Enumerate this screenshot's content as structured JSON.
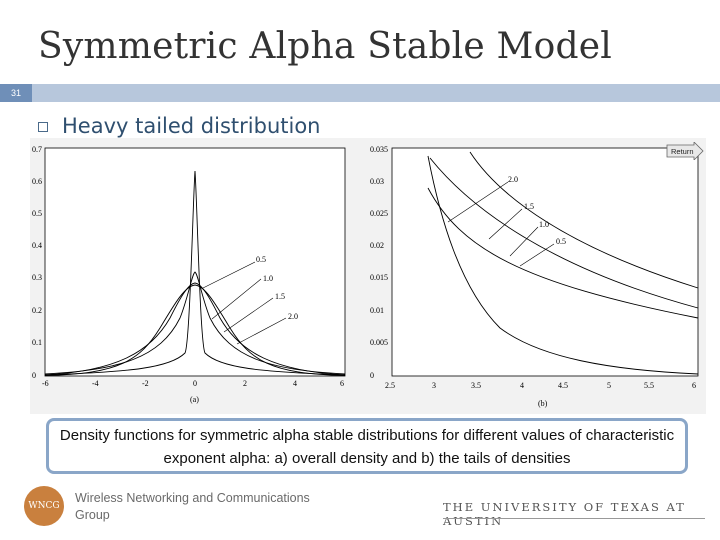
{
  "slide": {
    "title": "Symmetric Alpha Stable Model",
    "number": "31",
    "bullet": "Heavy tailed distribution",
    "return_label": "Return"
  },
  "figure_a": {
    "xticks": [
      "-6",
      "-4",
      "-2",
      "0",
      "2",
      "4",
      "6"
    ],
    "yticks": [
      "0",
      "0.1",
      "0.2",
      "0.3",
      "0.4",
      "0.5",
      "0.6",
      "0.7"
    ],
    "sublabel": "(a)",
    "curve_labels": [
      "0.5",
      "1.0",
      "1.5",
      "2.0"
    ]
  },
  "figure_b": {
    "xticks": [
      "2.5",
      "3",
      "3.5",
      "4",
      "4.5",
      "5",
      "5.5",
      "6"
    ],
    "yticks": [
      "0",
      "0.005",
      "0.01",
      "0.015",
      "0.02",
      "0.025",
      "0.03",
      "0.035"
    ],
    "sublabel": "(b)",
    "curve_labels": [
      "2.0",
      "1.5",
      "1.0",
      "0.5"
    ]
  },
  "caption": "Density functions for symmetric alpha stable distributions for different values of characteristic exponent alpha: a) overall density and b) the tails of densities",
  "footer": {
    "logo_text": "WNCG",
    "org_line1": "Wireless Networking and Communications",
    "org_line2": "Group",
    "university": "THE UNIVERSITY OF TEXAS AT AUSTIN"
  },
  "colors": {
    "bar": "#b7c7dc",
    "accent": "#6f8fb8",
    "caption_border": "#8aa6c8",
    "logo": "#c9803e"
  }
}
